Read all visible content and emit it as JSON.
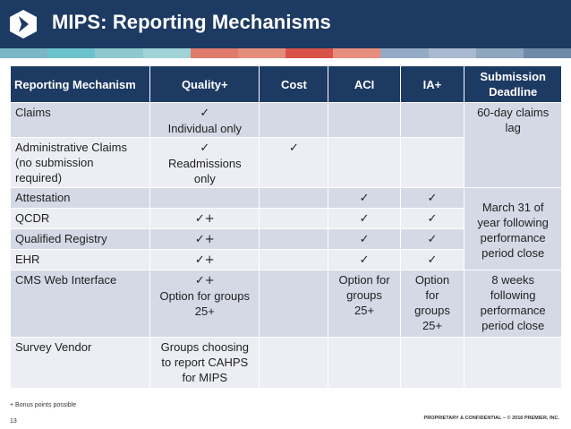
{
  "header": {
    "title": "MIPS: Reporting Mechanisms",
    "background": "#1d3a63",
    "logo_icon": "premier-logo-icon"
  },
  "stripe_colors": [
    "#7ab6c6",
    "#6cc3cc",
    "#8ec9cf",
    "#9fd3d6",
    "#e07b6b",
    "#e58d7b",
    "#d9534a",
    "#e88d7d",
    "#94a9c4",
    "#aab9cf",
    "#8fa6bf",
    "#6f8aa8"
  ],
  "table": {
    "header_bg": "#1d3a63",
    "check_glyph": "✓",
    "headers": [
      "Reporting Mechanism",
      "Quality+",
      "Cost",
      "ACI",
      "IA+",
      "Submission Deadline"
    ],
    "rows": {
      "claims": {
        "mechanism": "Claims",
        "quality": [
          "✓",
          "Individual only"
        ],
        "deadline": [
          "60-day claims",
          "lag"
        ]
      },
      "admin_claims": {
        "mechanism": [
          "Administrative Claims",
          "(no submission",
          "required)"
        ],
        "quality": [
          "✓",
          "Readmissions",
          "only"
        ],
        "cost": "✓"
      },
      "attestation": {
        "mechanism": "Attestation",
        "aci": "✓",
        "ia": "✓"
      },
      "qcdr": {
        "mechanism": "QCDR",
        "quality": "✓+",
        "aci": "✓",
        "ia": "✓"
      },
      "qualified_registry": {
        "mechanism": "Qualified Registry",
        "quality": "✓+",
        "aci": "✓",
        "ia": "✓"
      },
      "ehr": {
        "mechanism": "EHR",
        "quality": "✓+",
        "aci": "✓",
        "ia": "✓"
      },
      "cms_web": {
        "mechanism": "CMS Web Interface",
        "quality": [
          "✓+",
          "Option for groups",
          "25+"
        ],
        "aci": [
          "Option for",
          "groups",
          "25+"
        ],
        "ia": [
          "Option",
          "for",
          "groups",
          "25+"
        ],
        "deadline": [
          "8 weeks",
          "following",
          "performance",
          "period close"
        ]
      },
      "survey_vendor": {
        "mechanism": "Survey Vendor",
        "quality": [
          "Groups choosing",
          "to report CAHPS",
          "for MIPS"
        ]
      },
      "march_deadline": [
        "March 31 of",
        "year following",
        "performance",
        "period close"
      ]
    }
  },
  "footer": {
    "footnote": "+ Bonus points possible",
    "page_number": "13",
    "proprietary": "PROPRIETARY & CONFIDENTIAL – © 2016 PREMIER, INC."
  }
}
